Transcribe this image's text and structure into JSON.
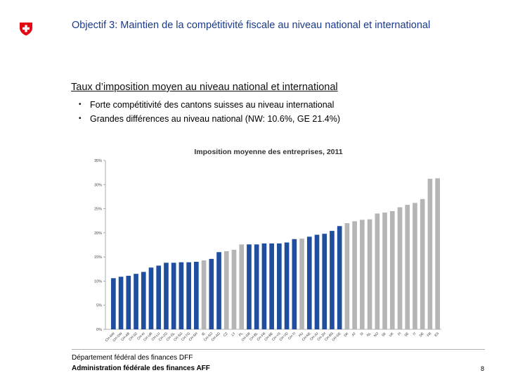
{
  "header": {
    "title": "Objectif 3: Maintien de la compétitivité fiscale au niveau national et international"
  },
  "content": {
    "subtitle": "Taux d’imposition moyen au niveau national et international",
    "bullets": [
      "Forte compétitivité des cantons suisses au niveau international",
      "Grandes différences au niveau national (NW: 10.6%, GE  21.4%)"
    ]
  },
  "footer": {
    "line1": "Département fédéral des finances DFF",
    "line2": "Administration fédérale des finances AFF",
    "page": "8"
  },
  "colors": {
    "title": "#1a3a8c",
    "swiss_bar": "#1f4e9e",
    "intl_bar": "#b5b5b5",
    "swiss_red": "#e30613"
  },
  "chart_data": {
    "type": "bar",
    "title": "Imposition moyenne des entreprises, 2011",
    "xlabel": "",
    "ylabel": "",
    "ylim": [
      0,
      35
    ],
    "yticks": [
      "0%",
      "5%",
      "10%",
      "15%",
      "20%",
      "25%",
      "30%",
      "35%"
    ],
    "grid": false,
    "categories": [
      "CH-NW",
      "CH-OW",
      "CH-AR",
      "CH-SZ",
      "CH-AI",
      "CH-UR",
      "CH-LU",
      "CH-ZG",
      "CH-GL",
      "CH-SG",
      "CH-TG",
      "CH-SH",
      "IE",
      "CH-SO",
      "CH-AG",
      "CZ",
      "LT",
      "PL",
      "CH-GR",
      "CH-BL",
      "CH-FR",
      "CH-BE",
      "CH-VS",
      "CH-VD",
      "CH-TI",
      "HU",
      "CH-NE",
      "CH-JU",
      "CH-ZH",
      "CH-BS",
      "CH-GE",
      "DK",
      "AT",
      "SI",
      "NL",
      "NO",
      "SK",
      "UK",
      "FI",
      "SE",
      "IT",
      "DE",
      "FR",
      "ES"
    ],
    "values": [
      10.6,
      10.9,
      11.1,
      11.5,
      11.9,
      12.8,
      13.2,
      13.8,
      13.8,
      13.9,
      13.9,
      14.0,
      14.3,
      14.6,
      16.0,
      16.2,
      16.5,
      17.6,
      17.6,
      17.6,
      17.8,
      17.8,
      17.8,
      18.0,
      18.7,
      18.8,
      19.2,
      19.6,
      19.8,
      20.4,
      21.4,
      22.0,
      22.4,
      22.7,
      22.8,
      24.0,
      24.2,
      24.5,
      25.3,
      25.8,
      26.2,
      27.0,
      31.2,
      31.3
    ],
    "groups": [
      "CH",
      "CH",
      "CH",
      "CH",
      "CH",
      "CH",
      "CH",
      "CH",
      "CH",
      "CH",
      "CH",
      "CH",
      "INT",
      "CH",
      "CH",
      "INT",
      "INT",
      "INT",
      "CH",
      "CH",
      "CH",
      "CH",
      "CH",
      "CH",
      "CH",
      "INT",
      "CH",
      "CH",
      "CH",
      "CH",
      "CH",
      "INT",
      "INT",
      "INT",
      "INT",
      "INT",
      "INT",
      "INT",
      "INT",
      "INT",
      "INT",
      "INT",
      "INT",
      "INT"
    ]
  }
}
